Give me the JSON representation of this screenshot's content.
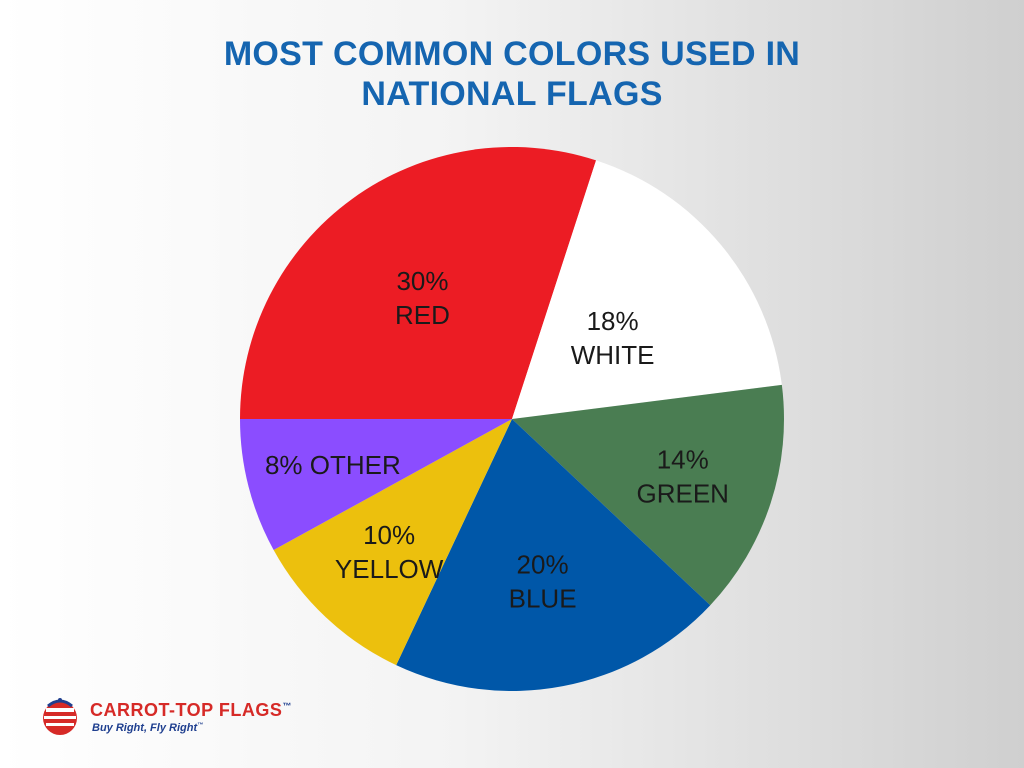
{
  "chart_data": {
    "type": "pie",
    "title": "MOST COMMON COLORS USED IN NATIONAL FLAGS",
    "title_lines": [
      "MOST COMMON COLORS USED IN",
      "NATIONAL FLAGS"
    ],
    "slices": [
      {
        "name": "RED",
        "value": 30,
        "display": "30%",
        "color": "#ec1c24"
      },
      {
        "name": "WHITE",
        "value": 18,
        "display": "18%",
        "color": "#ffffff"
      },
      {
        "name": "GREEN",
        "value": 14,
        "display": "14%",
        "color": "#4a7d52"
      },
      {
        "name": "BLUE",
        "value": 20,
        "display": "20%",
        "color": "#0057a8"
      },
      {
        "name": "YELLOW",
        "value": 10,
        "display": "10%",
        "color": "#ecc00d"
      },
      {
        "name": "OTHER",
        "value": 8,
        "display": "8%",
        "color": "#8b4dff"
      }
    ],
    "label_color": "#1a1a1a",
    "title_color": "#1565b0"
  },
  "brand": {
    "name": "CARROT-TOP FLAGS",
    "trademark": "™",
    "tagline": "Buy Right, Fly Right",
    "tagline_trademark": "™",
    "logo_icon": "flag-globe-icon",
    "name_color": "#d62a27",
    "tagline_color": "#1f3f8f"
  }
}
